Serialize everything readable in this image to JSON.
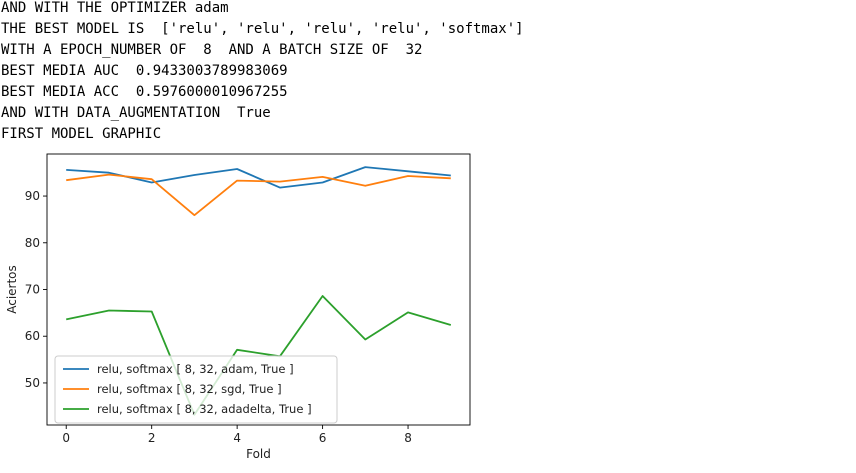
{
  "output": {
    "lines": [
      "AND WITH THE OPTIMIZER adam",
      "THE BEST MODEL IS  ['relu', 'relu', 'relu', 'relu', 'softmax']",
      "WITH A EPOCH_NUMBER OF  8  AND A BATCH SIZE OF  32",
      "BEST MEDIA AUC  0.9433003789983069",
      "BEST MEDIA ACC  0.5976000010967255",
      "AND WITH DATA_AUGMENTATION  True",
      "FIRST MODEL GRAPHIC"
    ]
  },
  "chart_data": {
    "type": "line",
    "xlabel": "Fold",
    "ylabel": "Aciertos",
    "xlim": [
      -0.45,
      9.45
    ],
    "ylim": [
      41,
      99
    ],
    "xticks": [
      0,
      2,
      4,
      6,
      8
    ],
    "yticks": [
      50,
      60,
      70,
      80,
      90
    ],
    "x": [
      0,
      1,
      2,
      3,
      4,
      5,
      6,
      7,
      8,
      9
    ],
    "legend_position": "lower-left",
    "grid": false,
    "series": [
      {
        "name": "relu, softmax [ 8, 32, adam, True ]",
        "color": "#1f77b4",
        "values": [
          95.6,
          95.0,
          92.9,
          94.5,
          95.8,
          91.8,
          92.9,
          96.2,
          95.3,
          94.4
        ]
      },
      {
        "name": "relu, softmax [ 8, 32, sgd, True ]",
        "color": "#ff7f0e",
        "values": [
          93.4,
          94.6,
          93.6,
          85.9,
          93.3,
          93.1,
          94.1,
          92.2,
          94.3,
          93.8
        ]
      },
      {
        "name": "relu, softmax [ 8, 32, adadelta, True ]",
        "color": "#2ca02c",
        "values": [
          63.6,
          65.5,
          65.3,
          43.2,
          57.1,
          55.7,
          68.6,
          59.3,
          65.1,
          62.4
        ]
      }
    ]
  }
}
